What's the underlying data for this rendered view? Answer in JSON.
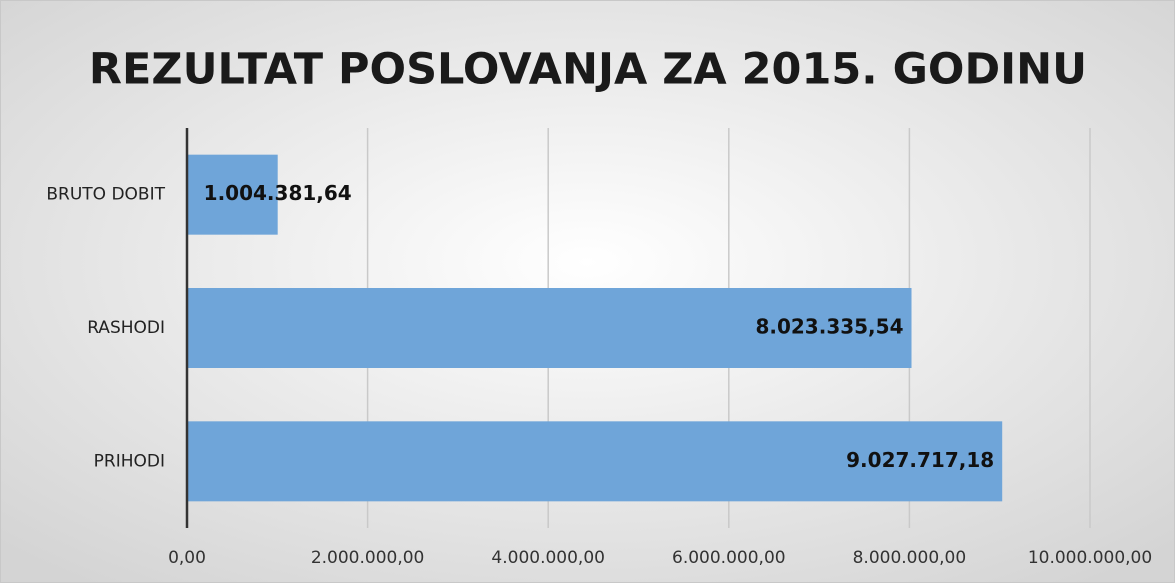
{
  "chart_data": {
    "type": "hbar",
    "title": "REZULTAT POSLOVANJA ZA 2015. GODINU",
    "categories": [
      "BRUTO DOBIT",
      "RASHODI",
      "PRIHODI"
    ],
    "values": [
      1004381.64,
      8023335.54,
      9027717.18
    ],
    "value_labels": [
      "1.004.381,64",
      "8.023.335,54",
      "9.027.717,18"
    ],
    "color": "#6fa5d9",
    "xlim": [
      0,
      10000000
    ],
    "xticks": [
      {
        "value": 0,
        "label": "0,00"
      },
      {
        "value": 2000000,
        "label": "2.000.000,00"
      },
      {
        "value": 4000000,
        "label": "4.000.000,00"
      },
      {
        "value": 6000000,
        "label": "6.000.000,00"
      },
      {
        "value": 8000000,
        "label": "8.000.000,00"
      },
      {
        "value": 10000000,
        "label": "10.000.000,00"
      }
    ],
    "grid": true
  }
}
